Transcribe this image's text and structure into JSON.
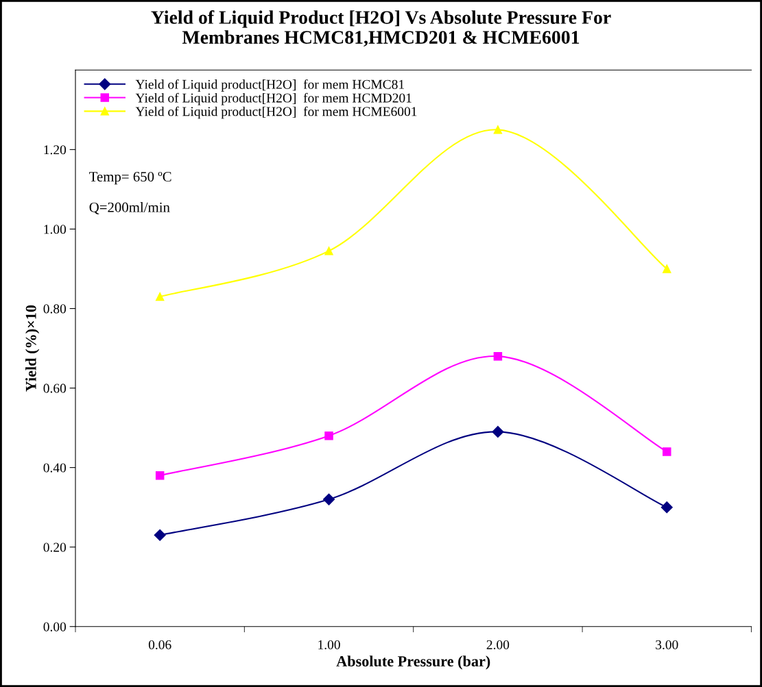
{
  "chart_data": {
    "type": "line",
    "title": "Yield of Liquid Product [H2O] Vs Absolute Pressure For\nMembranes HCMC81,HMCD201 & HCME6001",
    "xlabel": "Absolute Pressure (bar)",
    "ylabel": "Yield (%)×10",
    "categories": [
      "0.06",
      "1.00",
      "2.00",
      "3.00"
    ],
    "series": [
      {
        "name": "Yield of Liquid product[H2O]  for mem HCMC81",
        "color": "#000080",
        "marker": "diamond",
        "values": [
          0.23,
          0.32,
          0.49,
          0.3
        ]
      },
      {
        "name": "Yield of Liquid product[H2O]  for mem HCMD201",
        "color": "#ff00ff",
        "marker": "square",
        "values": [
          0.38,
          0.48,
          0.68,
          0.44
        ]
      },
      {
        "name": "Yield of Liquid product[H2O]  for mem HCME6001",
        "color": "#ffff00",
        "marker": "triangle",
        "values": [
          0.83,
          0.945,
          1.25,
          0.9
        ]
      }
    ],
    "ylim": [
      0,
      1.4
    ],
    "yticks": [
      {
        "value": 0,
        "label": "0.00"
      },
      {
        "value": 0.2,
        "label": "0.20"
      },
      {
        "value": 0.4,
        "label": "0.40"
      },
      {
        "value": 0.6,
        "label": "0.60"
      },
      {
        "value": 0.8,
        "label": "0.80"
      },
      {
        "value": 1.0,
        "label": "1.00"
      },
      {
        "value": 1.2,
        "label": "1.20"
      }
    ],
    "annotations": [
      "Temp= 650 ºC",
      "Q=200ml/min"
    ],
    "grid": false,
    "legend": "top left",
    "line_style": "solid"
  }
}
